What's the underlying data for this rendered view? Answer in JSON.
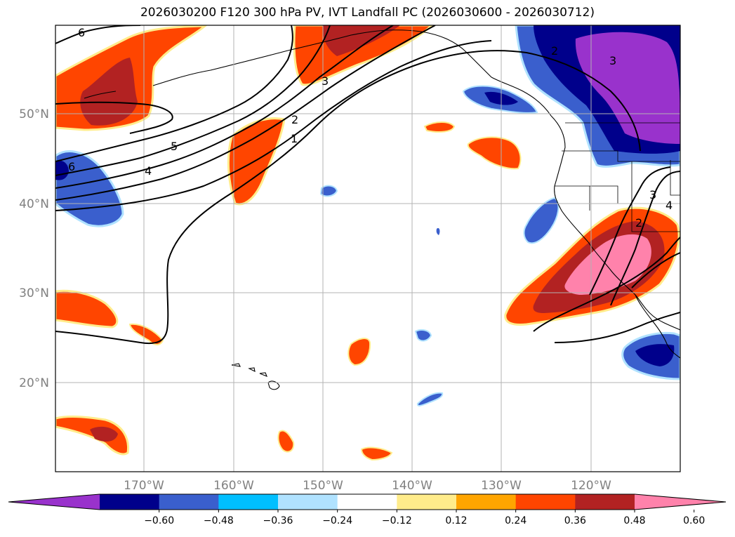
{
  "title": "2026030200 F120 300 hPa PV, IVT Landfall PC (2026030600 - 2026030712)",
  "map": {
    "lon_labels": [
      "170°W",
      "160°W",
      "150°W",
      "140°W",
      "130°W",
      "120°W"
    ],
    "lat_labels": [
      "50°N",
      "40°N",
      "30°N",
      "20°N"
    ],
    "contour_labels": [
      "6",
      "5",
      "4",
      "3",
      "2",
      "1",
      "6",
      "3",
      "2",
      "2",
      "3",
      "4"
    ]
  },
  "colorbar": {
    "ticks": [
      "−0.60",
      "−0.48",
      "−0.36",
      "−0.24",
      "−0.12",
      "0.12",
      "0.24",
      "0.36",
      "0.48",
      "0.60"
    ],
    "colors": [
      "#9932cc",
      "#00008b",
      "#3a5fcd",
      "#00bfff",
      "#b0e2ff",
      "#ffffff",
      "#ffec8b",
      "#ffa500",
      "#ff4500",
      "#b22222",
      "#ff82ab"
    ]
  }
}
